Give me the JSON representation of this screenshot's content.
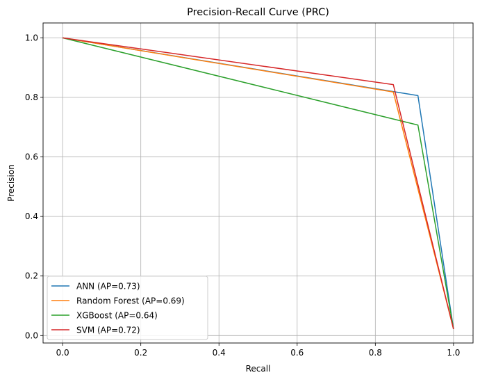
{
  "chart_data": {
    "type": "line",
    "title": "Precision-Recall Curve (PRC)",
    "xlabel": "Recall",
    "ylabel": "Precision",
    "xlim": [
      -0.05,
      1.05
    ],
    "ylim": [
      -0.025,
      1.05
    ],
    "xticks": [
      0.0,
      0.2,
      0.4,
      0.6,
      0.8,
      1.0
    ],
    "xtick_labels": [
      "0.0",
      "0.2",
      "0.4",
      "0.6",
      "0.8",
      "1.0"
    ],
    "yticks": [
      0.0,
      0.2,
      0.4,
      0.6,
      0.8,
      1.0
    ],
    "ytick_labels": [
      "0.0",
      "0.2",
      "0.4",
      "0.6",
      "0.8",
      "1.0"
    ],
    "grid": true,
    "legend_position": "lower-left",
    "series": [
      {
        "name": "ANN (AP=0.73)",
        "color": "#1f77b4",
        "x": [
          0.0,
          0.909,
          1.0
        ],
        "y": [
          1.0,
          0.806,
          0.022
        ]
      },
      {
        "name": "Random Forest (AP=0.69)",
        "color": "#ff7f0e",
        "x": [
          0.0,
          0.846,
          1.0
        ],
        "y": [
          1.0,
          0.818,
          0.022
        ]
      },
      {
        "name": "XGBoost (AP=0.64)",
        "color": "#2ca02c",
        "x": [
          0.0,
          0.909,
          1.0
        ],
        "y": [
          1.0,
          0.707,
          0.022
        ]
      },
      {
        "name": "SVM (AP=0.72)",
        "color": "#d62728",
        "x": [
          0.0,
          0.846,
          1.0
        ],
        "y": [
          1.0,
          0.843,
          0.022
        ]
      }
    ]
  }
}
